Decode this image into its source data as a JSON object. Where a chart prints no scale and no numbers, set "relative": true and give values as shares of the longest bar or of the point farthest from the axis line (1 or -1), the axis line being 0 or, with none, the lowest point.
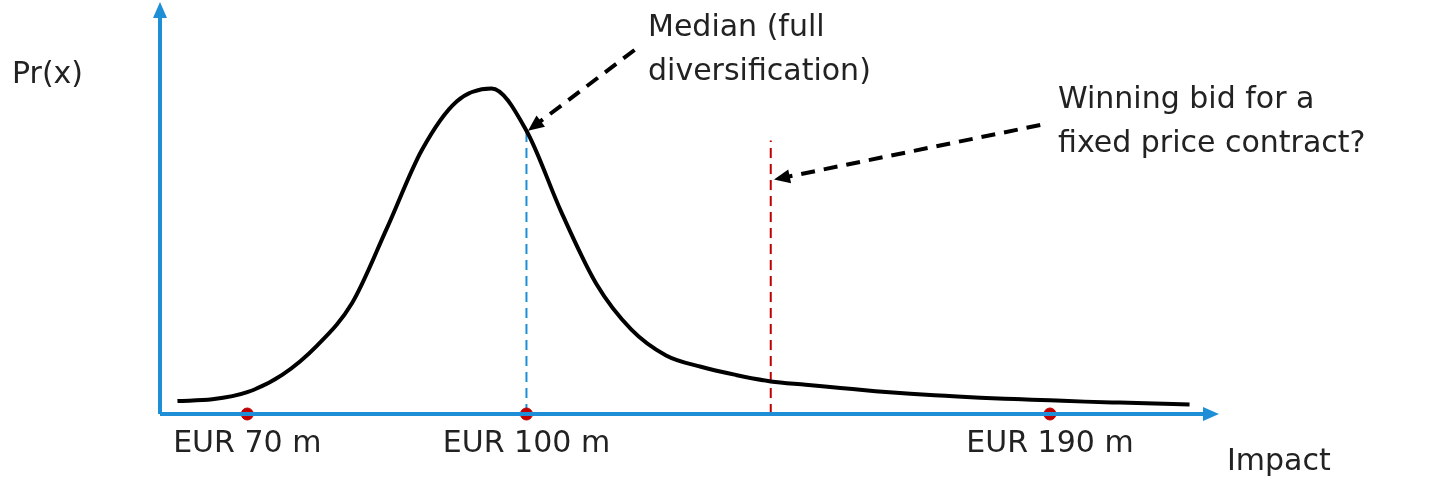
{
  "chart_data": {
    "type": "line",
    "relative": true,
    "ylabel": "Pr(x)",
    "xlabel": "Impact",
    "legend": false,
    "grid": false,
    "marker": "none",
    "line_style": "solid",
    "categories": [
      null,
      null,
      "EUR 70 m",
      null,
      null,
      null,
      null,
      null,
      null,
      null,
      "EUR 100 m",
      null,
      null,
      null,
      null,
      null,
      null,
      null,
      null,
      null,
      null,
      null,
      null,
      null,
      null,
      "EUR 190 m",
      null,
      null,
      null,
      null
    ],
    "series": [
      {
        "color": "#000000",
        "values": [
          0.04,
          0.045,
          0.067,
          0.12,
          0.21,
          0.34,
          0.57,
          0.81,
          0.96,
          1,
          0.87,
          0.62,
          0.4,
          0.26,
          0.18,
          0.145,
          0.12,
          0.1,
          0.09,
          0.08,
          0.07,
          0.062,
          0.056,
          0.05,
          0.046,
          0.042,
          0.038,
          0.035,
          0.032,
          0.029
        ]
      },
      {
        "type": "scatter",
        "color": "#c00000",
        "marker": "circle",
        "values": [
          null,
          null,
          0,
          null,
          null,
          null,
          null,
          null,
          null,
          null,
          0,
          null,
          null,
          null,
          null,
          null,
          null,
          null,
          null,
          null,
          null,
          null,
          null,
          null,
          null,
          0,
          null,
          null,
          null,
          null
        ]
      }
    ],
    "ref_lines": [
      {
        "axis": "x",
        "value": "EUR 100 m",
        "color": "#1e8fd6",
        "line_style": "dashed"
      }
    ],
    "annotations": [
      "Median (full diversification)",
      "Winning bid for a fixed price contract?"
    ]
  }
}
